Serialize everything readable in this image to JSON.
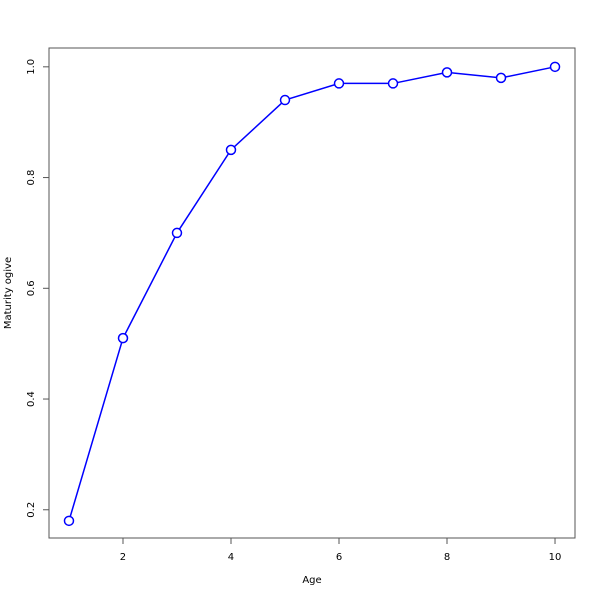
{
  "chart_data": {
    "type": "line",
    "title": "",
    "xlabel": "Age",
    "ylabel": "Maturity ogive",
    "x": [
      1,
      2,
      3,
      4,
      5,
      6,
      7,
      8,
      9,
      10
    ],
    "series": [
      {
        "values": [
          0.18,
          0.51,
          0.7,
          0.85,
          0.94,
          0.97,
          0.97,
          0.99,
          0.98,
          1.0
        ],
        "color": "#0000ff",
        "marker": "open-circle"
      }
    ],
    "xlim": [
      0.63,
      10.37
    ],
    "ylim": [
      0.149,
      1.034
    ],
    "xticks": [
      2,
      4,
      6,
      8,
      10
    ],
    "xtick_labels": [
      "2",
      "4",
      "6",
      "8",
      "10"
    ],
    "yticks": [
      0.2,
      0.4,
      0.6,
      0.8,
      1.0
    ],
    "ytick_labels": [
      "0.2",
      "0.4",
      "0.6",
      "0.8",
      "1.0"
    ],
    "grid": false,
    "legend": "none"
  }
}
